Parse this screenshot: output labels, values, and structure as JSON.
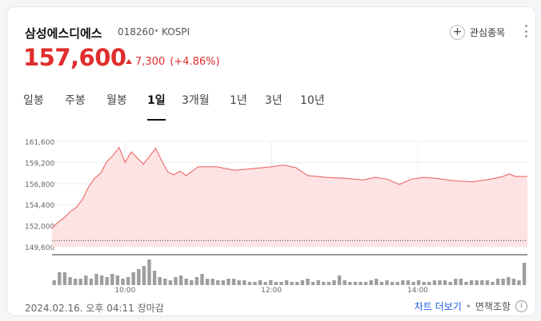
{
  "stock": {
    "name": "삼성에스디에스",
    "code": "018260",
    "separator": "•",
    "market": "KOSPI",
    "price": "157,600",
    "change": "7,300",
    "change_pct": "(+4.86%)",
    "direction": "up"
  },
  "actions": {
    "favorite_label": "관심종목",
    "more_icon": "more-vertical-icon",
    "favorite_icon": "plus-icon"
  },
  "tabs": [
    {
      "label": "일봉",
      "active": false
    },
    {
      "label": "주봉",
      "active": false
    },
    {
      "label": "월봉",
      "active": false
    },
    {
      "label": "1일",
      "active": true
    },
    {
      "label": "3개월",
      "active": false
    },
    {
      "label": "1년",
      "active": false
    },
    {
      "label": "3년",
      "active": false
    },
    {
      "label": "10년",
      "active": false
    }
  ],
  "colors": {
    "up": "#e02d2d",
    "area_fill": "#fde3e3",
    "line": "#ea5a5a",
    "volume": "#9e9e9e",
    "link": "#1e5ae0"
  },
  "chart_data": {
    "type": "area",
    "y_ticks": [
      "161,600",
      "159,200",
      "156,800",
      "154,400",
      "152,000",
      "149,600"
    ],
    "x_ticks": [
      "10:00",
      "12:00",
      "14:00"
    ],
    "ylim": [
      149600,
      161600
    ],
    "prev_close": 150300,
    "x_range": [
      "09:00",
      "15:30"
    ],
    "prices": [
      [
        "09:00",
        151700
      ],
      [
        "09:05",
        152400
      ],
      [
        "09:10",
        152900
      ],
      [
        "09:15",
        153600
      ],
      [
        "09:20",
        154100
      ],
      [
        "09:25",
        155000
      ],
      [
        "09:30",
        156400
      ],
      [
        "09:35",
        157400
      ],
      [
        "09:40",
        158000
      ],
      [
        "09:45",
        159300
      ],
      [
        "09:50",
        160000
      ],
      [
        "09:55",
        160900
      ],
      [
        "10:00",
        159200
      ],
      [
        "10:05",
        160400
      ],
      [
        "10:10",
        159700
      ],
      [
        "10:15",
        159000
      ],
      [
        "10:20",
        159900
      ],
      [
        "10:25",
        160800
      ],
      [
        "10:30",
        159400
      ],
      [
        "10:35",
        158100
      ],
      [
        "10:40",
        157800
      ],
      [
        "10:45",
        158200
      ],
      [
        "10:50",
        157700
      ],
      [
        "11:00",
        158700
      ],
      [
        "11:15",
        158700
      ],
      [
        "11:30",
        158300
      ],
      [
        "11:45",
        158500
      ],
      [
        "12:00",
        158700
      ],
      [
        "12:10",
        158900
      ],
      [
        "12:20",
        158600
      ],
      [
        "12:30",
        157700
      ],
      [
        "12:45",
        157500
      ],
      [
        "13:00",
        157400
      ],
      [
        "13:15",
        157200
      ],
      [
        "13:25",
        157500
      ],
      [
        "13:35",
        157300
      ],
      [
        "13:45",
        156700
      ],
      [
        "13:55",
        157300
      ],
      [
        "14:05",
        157500
      ],
      [
        "14:15",
        157400
      ],
      [
        "14:30",
        157100
      ],
      [
        "14:45",
        157000
      ],
      [
        "15:00",
        157300
      ],
      [
        "15:10",
        157600
      ],
      [
        "15:15",
        157900
      ],
      [
        "15:20",
        157600
      ],
      [
        "15:30",
        157600
      ]
    ],
    "volume": [
      3,
      8,
      8,
      5,
      4,
      4,
      6,
      4,
      7,
      6,
      5,
      7,
      6,
      4,
      5,
      8,
      10,
      12,
      16,
      9,
      5,
      4,
      3,
      5,
      6,
      4,
      3,
      5,
      7,
      4,
      4,
      3,
      3,
      4,
      4,
      3,
      3,
      2,
      2,
      3,
      2,
      3,
      2,
      2,
      3,
      2,
      2,
      3,
      4,
      2,
      3,
      2,
      2,
      3,
      6,
      3,
      2,
      2,
      2,
      2,
      3,
      4,
      2,
      3,
      2,
      2,
      3,
      3,
      2,
      3,
      2,
      2,
      3,
      3,
      3,
      2,
      4,
      4,
      2,
      3,
      3,
      3,
      3,
      2,
      4,
      4,
      5,
      4,
      3,
      14
    ],
    "grid": true,
    "legend": "none"
  },
  "footer": {
    "datetime": "2024.02.16. 오후 04:11 장마감",
    "chart_link": "차트 더보기",
    "separator": "•",
    "disclaimer": "면책조항",
    "info_icon": "info-icon"
  }
}
